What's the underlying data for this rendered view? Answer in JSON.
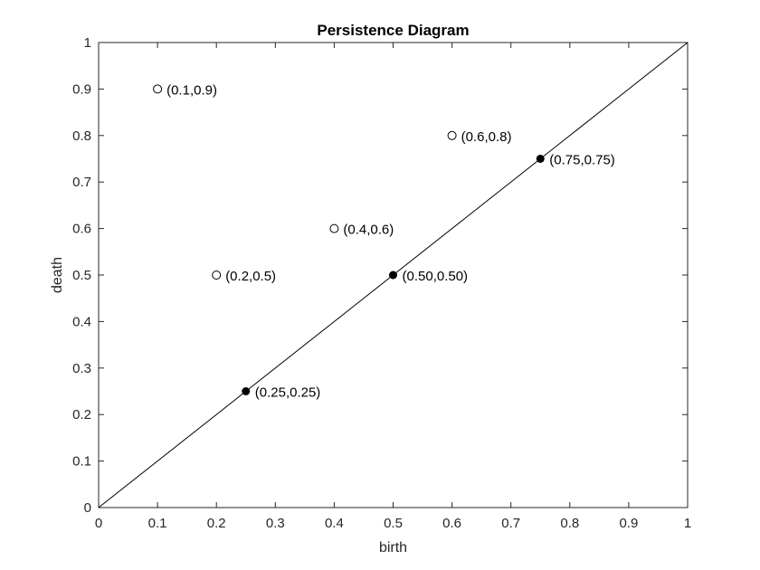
{
  "chart_data": {
    "type": "scatter",
    "title": "Persistence Diagram",
    "xlabel": "birth",
    "ylabel": "death",
    "xlim": [
      0,
      1
    ],
    "ylim": [
      0,
      1
    ],
    "xticks": [
      "0",
      "0.1",
      "0.2",
      "0.3",
      "0.4",
      "0.5",
      "0.6",
      "0.7",
      "0.8",
      "0.9",
      "1"
    ],
    "yticks": [
      "0",
      "0.1",
      "0.2",
      "0.3",
      "0.4",
      "0.5",
      "0.6",
      "0.7",
      "0.8",
      "0.9",
      "1"
    ],
    "grid": false,
    "diagonal_line": {
      "from": [
        0,
        0
      ],
      "to": [
        1,
        1
      ]
    },
    "series": [
      {
        "marker": "open-circle",
        "points": [
          {
            "x": 0.1,
            "y": 0.9,
            "label": "(0.1,0.9)"
          },
          {
            "x": 0.6,
            "y": 0.8,
            "label": "(0.6,0.8)"
          },
          {
            "x": 0.4,
            "y": 0.6,
            "label": "(0.4,0.6)"
          },
          {
            "x": 0.2,
            "y": 0.5,
            "label": "(0.2,0.5)"
          }
        ]
      },
      {
        "marker": "filled-circle",
        "points": [
          {
            "x": 0.75,
            "y": 0.75,
            "label": "(0.75,0.75)"
          },
          {
            "x": 0.5,
            "y": 0.5,
            "label": "(0.50,0.50)"
          },
          {
            "x": 0.25,
            "y": 0.25,
            "label": "(0.25,0.25)"
          }
        ]
      }
    ],
    "colors": {
      "axis": "#262626",
      "marker": "#000000",
      "line": "#000000"
    }
  }
}
